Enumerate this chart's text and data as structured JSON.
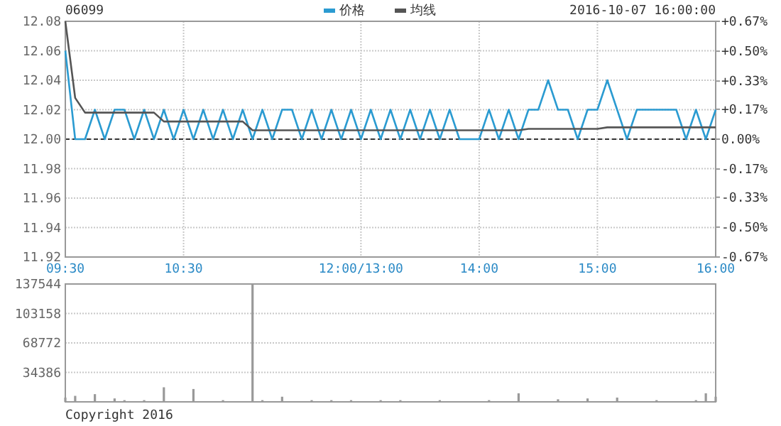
{
  "chart_data": [
    {
      "type": "line",
      "title": "06099",
      "annotations": [
        "2016-10-07 16:00:00"
      ],
      "legend": "top",
      "grid": true,
      "marker": "none",
      "categories": [
        "09:30",
        null,
        null,
        null,
        null,
        null,
        null,
        null,
        null,
        null,
        null,
        null,
        "10:30",
        null,
        null,
        null,
        null,
        null,
        null,
        null,
        null,
        null,
        null,
        null,
        null,
        null,
        null,
        null,
        null,
        null,
        "12:00/13:00",
        null,
        null,
        null,
        null,
        null,
        null,
        null,
        null,
        null,
        null,
        null,
        "14:00",
        null,
        null,
        null,
        null,
        null,
        null,
        null,
        null,
        null,
        null,
        null,
        "15:00",
        null,
        null,
        null,
        null,
        null,
        null,
        null,
        null,
        null,
        null,
        null,
        "16:00"
      ],
      "ylim": [
        11.92,
        12.08
      ],
      "yticks": [
        {
          "value": 11.92,
          "label": "11.92"
        },
        {
          "value": 11.94,
          "label": "11.94"
        },
        {
          "value": 11.96,
          "label": "11.96"
        },
        {
          "value": 11.98,
          "label": "11.98"
        },
        {
          "value": 12.0,
          "label": "12.00"
        },
        {
          "value": 12.02,
          "label": "12.02"
        },
        {
          "value": 12.04,
          "label": "12.04"
        },
        {
          "value": 12.06,
          "label": "12.06"
        },
        {
          "value": 12.08,
          "label": "12.08"
        }
      ],
      "y2lim": [
        -0.67,
        0.67
      ],
      "y2ticks": [
        {
          "value": -0.67,
          "label": "-0.67%"
        },
        {
          "value": -0.5,
          "label": "-0.50%"
        },
        {
          "value": -0.33,
          "label": "-0.33%"
        },
        {
          "value": -0.17,
          "label": "-0.17%"
        },
        {
          "value": 0,
          "label": "0.00%"
        },
        {
          "value": 0.17,
          "label": "+0.17%"
        },
        {
          "value": 0.33,
          "label": "+0.33%"
        },
        {
          "value": 0.5,
          "label": "+0.50%"
        },
        {
          "value": 0.67,
          "label": "+0.67%"
        }
      ],
      "ref_lines": [
        {
          "axis": "y",
          "value": 12.0,
          "color": "#333333",
          "line_style": "dashed"
        }
      ],
      "series": [
        {
          "name": "价格",
          "color": "#2b9bd1",
          "values": [
            12.06,
            12.0,
            12.0,
            12.02,
            12.0,
            12.02,
            12.02,
            12.0,
            12.02,
            12.0,
            12.02,
            12.0,
            12.02,
            12.0,
            12.02,
            12.0,
            12.02,
            12.0,
            12.02,
            12.0,
            12.02,
            12.0,
            12.02,
            12.02,
            12.0,
            12.02,
            12.0,
            12.02,
            12.0,
            12.02,
            12.0,
            12.02,
            12.0,
            12.02,
            12.0,
            12.02,
            12.0,
            12.02,
            12.0,
            12.02,
            12.0,
            12.0,
            12.0,
            12.02,
            12.0,
            12.02,
            12.0,
            12.02,
            12.02,
            12.04,
            12.02,
            12.02,
            12.0,
            12.02,
            12.02,
            12.04,
            12.02,
            12.0,
            12.02,
            12.02,
            12.02,
            12.02,
            12.02,
            12.0,
            12.02,
            12.0,
            12.02
          ]
        },
        {
          "name": "均线",
          "color": "#555555",
          "values": [
            12.08,
            12.028,
            12.018,
            12.018,
            12.018,
            12.018,
            12.018,
            12.018,
            12.018,
            12.018,
            12.012,
            12.012,
            12.012,
            12.012,
            12.012,
            12.012,
            12.012,
            12.012,
            12.012,
            12.006,
            12.006,
            12.006,
            12.006,
            12.006,
            12.006,
            12.006,
            12.006,
            12.006,
            12.006,
            12.006,
            12.006,
            12.006,
            12.006,
            12.006,
            12.006,
            12.006,
            12.006,
            12.006,
            12.006,
            12.006,
            12.006,
            12.006,
            12.006,
            12.006,
            12.006,
            12.006,
            12.006,
            12.007,
            12.007,
            12.007,
            12.007,
            12.007,
            12.007,
            12.007,
            12.007,
            12.008,
            12.008,
            12.008,
            12.008,
            12.008,
            12.008,
            12.008,
            12.008,
            12.008,
            12.008,
            12.008,
            12.008
          ]
        }
      ]
    },
    {
      "type": "bar",
      "annotations": [
        "Copyright 2016"
      ],
      "grid": true,
      "tick_labels": "y",
      "categories": [
        null,
        null,
        null,
        null,
        null,
        null,
        null,
        null,
        null,
        null,
        null,
        null,
        null,
        null,
        null,
        null,
        null,
        null,
        null,
        null,
        null,
        null,
        null,
        null,
        null,
        null,
        null,
        null,
        null,
        null,
        null,
        null,
        null,
        null,
        null,
        null,
        null,
        null,
        null,
        null,
        null,
        null,
        null,
        null,
        null,
        null,
        null,
        null,
        null,
        null,
        null,
        null,
        null,
        null,
        null,
        null,
        null,
        null,
        null,
        null,
        null,
        null,
        null,
        null,
        null,
        null,
        null
      ],
      "ylim": [
        0,
        137544
      ],
      "yticks": [
        34386,
        68772,
        103158,
        137544
      ],
      "series": [
        {
          "color": "#999999",
          "values": [
            5000,
            7000,
            null,
            9000,
            null,
            4000,
            2000,
            null,
            2000,
            null,
            17000,
            null,
            null,
            15000,
            null,
            null,
            2000,
            null,
            null,
            137544,
            2000,
            null,
            6000,
            null,
            null,
            2000,
            null,
            2000,
            null,
            2000,
            null,
            null,
            2000,
            null,
            2000,
            null,
            null,
            null,
            2000,
            null,
            null,
            null,
            null,
            2000,
            null,
            null,
            10000,
            null,
            null,
            null,
            3000,
            null,
            null,
            4000,
            null,
            null,
            5000,
            null,
            null,
            null,
            2000,
            null,
            null,
            null,
            2000,
            10000,
            6000
          ]
        }
      ]
    }
  ]
}
